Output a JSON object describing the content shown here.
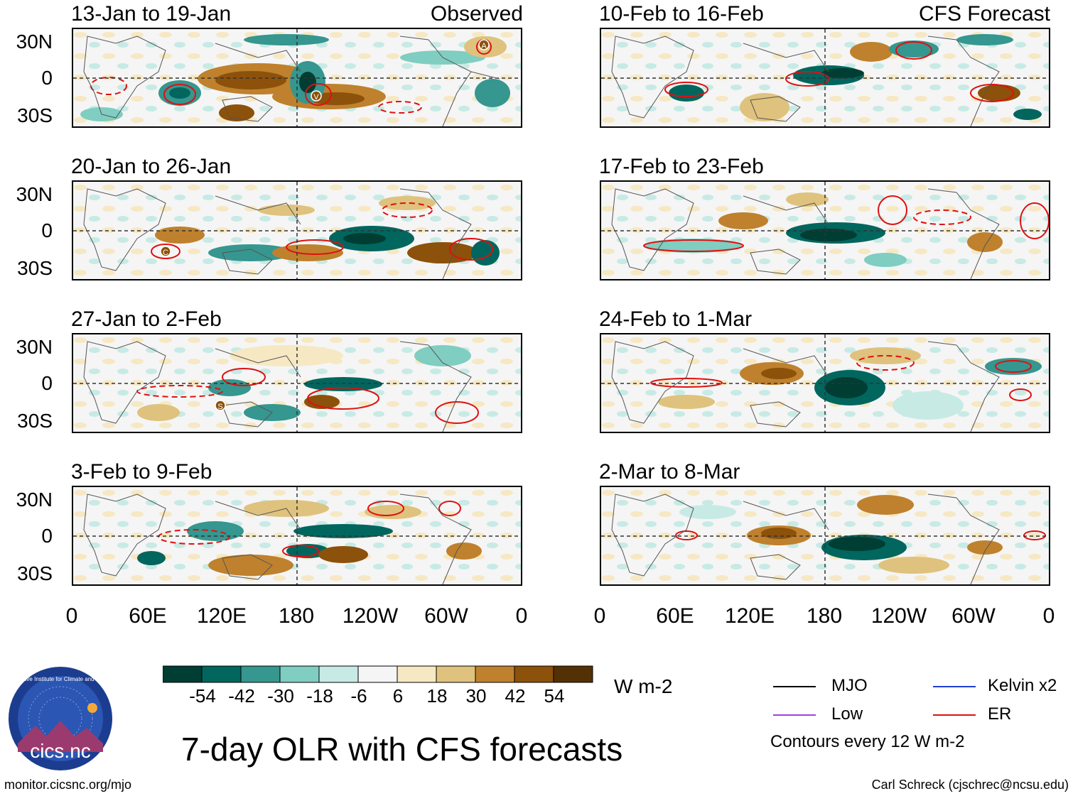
{
  "left_column": {
    "tag": "Observed",
    "panels": [
      {
        "title": "13-Jan to 19-Jan",
        "markers": [
          "A",
          "V"
        ]
      },
      {
        "title": "20-Jan to 26-Jan",
        "markers": [
          "C"
        ]
      },
      {
        "title": "27-Jan to 2-Feb",
        "markers": [
          "S"
        ]
      },
      {
        "title": "3-Feb to 9-Feb",
        "markers": []
      }
    ]
  },
  "right_column": {
    "tag": "CFS Forecast",
    "panels": [
      {
        "title": "10-Feb to 16-Feb"
      },
      {
        "title": "17-Feb to 23-Feb"
      },
      {
        "title": "24-Feb to 1-Mar"
      },
      {
        "title": "2-Mar to 8-Mar"
      }
    ]
  },
  "axes": {
    "lat_ticks": [
      "30N",
      "0",
      "30S"
    ],
    "lon_ticks": [
      "0",
      "60E",
      "120E",
      "180",
      "120W",
      "60W",
      "0"
    ]
  },
  "colorbar": {
    "units": "W m-2",
    "tick_labels": [
      "-54",
      "-42",
      "-30",
      "-18",
      "-6",
      "6",
      "18",
      "30",
      "42",
      "54"
    ],
    "colors": [
      "#003d33",
      "#01665e",
      "#35978f",
      "#80cdc1",
      "#c7eae5",
      "#f5f5f5",
      "#f6e8c3",
      "#dfc27d",
      "#bf812d",
      "#8c510a",
      "#543005"
    ]
  },
  "title": "7-day OLR with CFS forecasts",
  "legend": {
    "items": [
      {
        "label": "MJO",
        "color": "#000000"
      },
      {
        "label": "Kelvin x2",
        "color": "#1f3fd6"
      },
      {
        "label": "Low",
        "color": "#a040e0"
      },
      {
        "label": "ER",
        "color": "#e01010"
      }
    ],
    "note": "Contours every 12 W m-2"
  },
  "logo": {
    "text": "cics.nc",
    "ring_text": "Cooperative Institute for Climate and Satellites"
  },
  "footer": {
    "url": "monitor.cicsnc.org/mjo",
    "credit": "Carl Schreck (cjschrec@ncsu.edu)"
  }
}
